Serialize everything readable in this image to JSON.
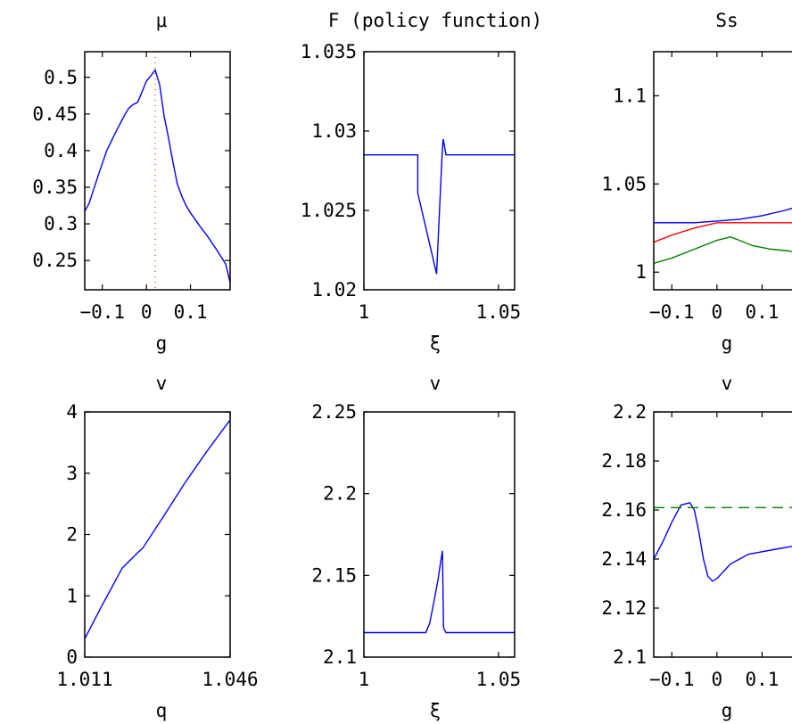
{
  "chart_data": [
    {
      "type": "line",
      "title": "μ",
      "xlabel": "g",
      "ylabel": "",
      "xlim": [
        -0.14,
        0.19
      ],
      "ylim": [
        0.21,
        0.535
      ],
      "xticks": [
        -0.1,
        0,
        0.1
      ],
      "xtick_labels": [
        "-0.1",
        "0",
        "0.1"
      ],
      "yticks": [
        0.25,
        0.3,
        0.35,
        0.4,
        0.45,
        0.5
      ],
      "ytick_labels": [
        "0.25",
        "0.3",
        "0.35",
        "0.4",
        "0.45",
        "0.5"
      ],
      "series": [
        {
          "color": "#0000ff",
          "style": "solid",
          "x": [
            -0.14,
            -0.13,
            -0.11,
            -0.09,
            -0.07,
            -0.05,
            -0.04,
            -0.03,
            -0.02,
            -0.01,
            0.0,
            0.01,
            0.02,
            0.03,
            0.04,
            0.05,
            0.06,
            0.07,
            0.08,
            0.09,
            0.1,
            0.12,
            0.14,
            0.16,
            0.18,
            0.19
          ],
          "y": [
            0.317,
            0.328,
            0.365,
            0.4,
            0.425,
            0.448,
            0.458,
            0.463,
            0.466,
            0.48,
            0.495,
            0.502,
            0.51,
            0.49,
            0.448,
            0.418,
            0.385,
            0.355,
            0.338,
            0.325,
            0.315,
            0.298,
            0.282,
            0.264,
            0.245,
            0.22
          ]
        }
      ],
      "vlines": [
        {
          "x": 0.02,
          "color": "#cc3300",
          "style": "dotted"
        }
      ]
    },
    {
      "type": "line",
      "title": "F (policy function)",
      "xlabel": "ξ",
      "ylabel": "",
      "xlim": [
        1.0,
        1.056
      ],
      "ylim": [
        1.02,
        1.035
      ],
      "xticks": [
        1.0,
        1.05
      ],
      "xtick_labels": [
        "1",
        "1.05"
      ],
      "yticks": [
        1.02,
        1.025,
        1.03,
        1.035
      ],
      "ytick_labels": [
        "1.02",
        "1.025",
        "1.03",
        "1.035"
      ],
      "series": [
        {
          "color": "#0000ff",
          "style": "solid",
          "x": [
            1.0,
            1.02,
            1.02,
            1.027,
            1.029,
            1.0292,
            1.0295,
            1.0305,
            1.056
          ],
          "y": [
            1.0285,
            1.0285,
            1.0261,
            1.021,
            1.0283,
            1.0289,
            1.0295,
            1.0285,
            1.0285
          ]
        }
      ]
    },
    {
      "type": "line",
      "title": "Ss",
      "xlabel": "g",
      "ylabel": "",
      "xlim": [
        -0.14,
        0.19
      ],
      "ylim": [
        0.99,
        1.125
      ],
      "xticks": [
        -0.1,
        0,
        0.1
      ],
      "xtick_labels": [
        "-0.1",
        "0",
        "0.1"
      ],
      "yticks": [
        1.0,
        1.05,
        1.1
      ],
      "ytick_labels": [
        "1",
        "1.05",
        "1.1"
      ],
      "series": [
        {
          "color": "#0000ff",
          "style": "solid",
          "x": [
            -0.14,
            -0.05,
            0.0,
            0.05,
            0.1,
            0.15,
            0.19
          ],
          "y": [
            1.028,
            1.028,
            1.029,
            1.03,
            1.032,
            1.035,
            1.038
          ]
        },
        {
          "color": "#ff0000",
          "style": "solid",
          "x": [
            -0.14,
            -0.1,
            -0.05,
            0.0,
            0.04,
            0.1,
            0.19
          ],
          "y": [
            1.017,
            1.021,
            1.025,
            1.028,
            1.028,
            1.028,
            1.028
          ]
        },
        {
          "color": "#008000",
          "style": "solid",
          "x": [
            -0.14,
            -0.1,
            -0.05,
            0.0,
            0.03,
            0.05,
            0.08,
            0.12,
            0.16,
            0.19
          ],
          "y": [
            1.005,
            1.008,
            1.013,
            1.018,
            1.02,
            1.018,
            1.015,
            1.013,
            1.012,
            1.01
          ]
        }
      ]
    },
    {
      "type": "line",
      "title": "v",
      "xlabel": "q",
      "ylabel": "",
      "xlim": [
        1.011,
        1.046
      ],
      "ylim": [
        0,
        4
      ],
      "xticks": [
        1.011,
        1.046
      ],
      "xtick_labels": [
        "1.011",
        "1.046"
      ],
      "yticks": [
        0,
        1,
        2,
        3,
        4
      ],
      "ytick_labels": [
        "0",
        "1",
        "2",
        "3",
        "4"
      ],
      "series": [
        {
          "color": "#0000ff",
          "style": "solid",
          "x": [
            1.011,
            1.015,
            1.02,
            1.024,
            1.025,
            1.03,
            1.035,
            1.04,
            1.046
          ],
          "y": [
            0.3,
            0.82,
            1.45,
            1.72,
            1.78,
            2.3,
            2.83,
            3.32,
            3.87
          ]
        }
      ]
    },
    {
      "type": "line",
      "title": "v",
      "xlabel": "ξ",
      "ylabel": "",
      "xlim": [
        1.0,
        1.056
      ],
      "ylim": [
        2.1,
        2.25
      ],
      "xticks": [
        1.0,
        1.05
      ],
      "xtick_labels": [
        "1",
        "1.05"
      ],
      "yticks": [
        2.1,
        2.15,
        2.2,
        2.25
      ],
      "ytick_labels": [
        "2.1",
        "2.15",
        "2.2",
        "2.25"
      ],
      "series": [
        {
          "color": "#0000ff",
          "style": "solid",
          "x": [
            1.0,
            1.023,
            1.0245,
            1.026,
            1.0275,
            1.0285,
            1.0292,
            1.0294,
            1.0296,
            1.0305,
            1.056
          ],
          "y": [
            2.115,
            2.115,
            2.121,
            2.134,
            2.147,
            2.158,
            2.165,
            2.14,
            2.118,
            2.115,
            2.115
          ]
        }
      ]
    },
    {
      "type": "line",
      "title": "v",
      "xlabel": "g",
      "ylabel": "",
      "xlim": [
        -0.14,
        0.19
      ],
      "ylim": [
        2.1,
        2.2
      ],
      "xticks": [
        -0.1,
        0,
        0.1
      ],
      "xtick_labels": [
        "-0.1",
        "0",
        "0.1"
      ],
      "yticks": [
        2.1,
        2.12,
        2.14,
        2.16,
        2.18,
        2.2
      ],
      "ytick_labels": [
        "2.1",
        "2.12",
        "2.14",
        "2.16",
        "2.18",
        "2.2"
      ],
      "series": [
        {
          "color": "#0000ff",
          "style": "solid",
          "x": [
            -0.14,
            -0.12,
            -0.1,
            -0.08,
            -0.06,
            -0.05,
            -0.04,
            -0.03,
            -0.02,
            -0.01,
            0.0,
            0.01,
            0.02,
            0.03,
            0.05,
            0.07,
            0.1,
            0.13,
            0.16,
            0.19
          ],
          "y": [
            2.14,
            2.147,
            2.155,
            2.162,
            2.163,
            2.16,
            2.151,
            2.14,
            2.133,
            2.131,
            2.132,
            2.134,
            2.136,
            2.138,
            2.14,
            2.142,
            2.143,
            2.144,
            2.145,
            2.146
          ]
        },
        {
          "color": "#008000",
          "style": "dashed",
          "x": [
            -0.14,
            0.19
          ],
          "y": [
            2.161,
            2.161
          ]
        }
      ]
    }
  ]
}
